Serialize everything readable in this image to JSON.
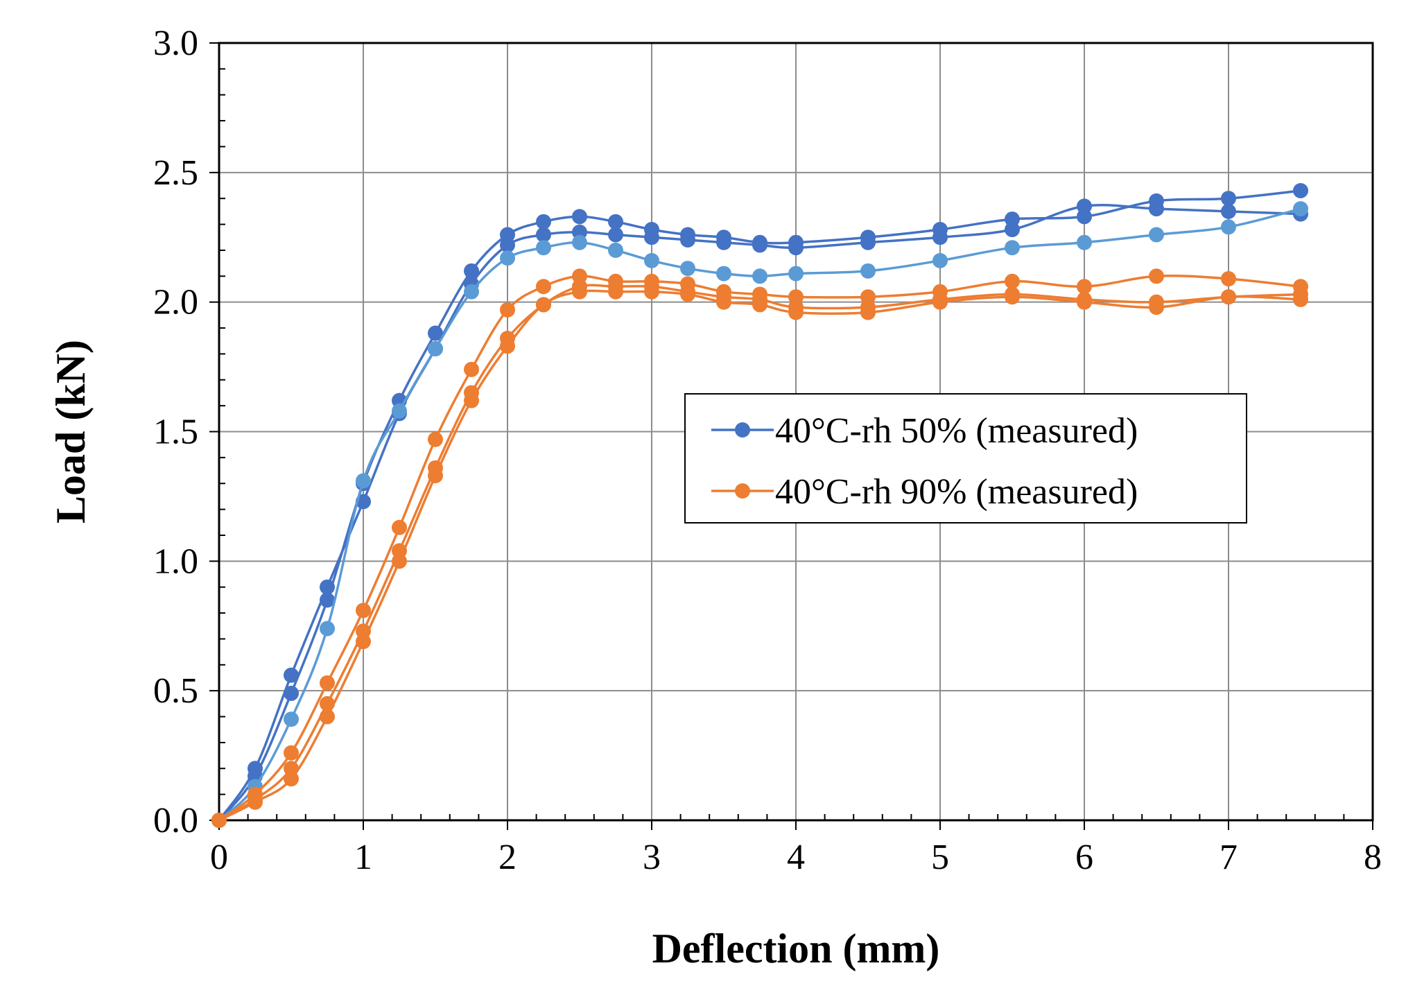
{
  "chart_data": {
    "type": "line",
    "title": "",
    "xlabel": "Deflection (mm)",
    "ylabel": "Load (kN)",
    "xlim": [
      0,
      8
    ],
    "ylim": [
      0,
      3
    ],
    "x_major_step": 1,
    "y_major_step": 0.5,
    "x_ticks": [
      "0",
      "1",
      "2",
      "3",
      "4",
      "5",
      "6",
      "7",
      "8"
    ],
    "y_ticks": [
      "0.0",
      "0.5",
      "1.0",
      "1.5",
      "2.0",
      "2.5",
      "3.0"
    ],
    "grid": true,
    "legend": {
      "position": "center-right",
      "entries": [
        {
          "label": "40°C-rh 50% (measured)",
          "color": "#4472C4"
        },
        {
          "label": "40°C-rh 90% (measured)",
          "color": "#ED7D31"
        }
      ]
    },
    "series": [
      {
        "legend_index": 0,
        "color": "#4472C4",
        "x": [
          0,
          0.25,
          0.5,
          0.75,
          1.0,
          1.25,
          1.5,
          1.75,
          2.0,
          2.25,
          2.5,
          2.75,
          3.0,
          3.25,
          3.5,
          3.75,
          4.0,
          4.5,
          5.0,
          5.5,
          6.0,
          6.5,
          7.0,
          7.5
        ],
        "y": [
          0,
          0.17,
          0.49,
          0.85,
          1.3,
          1.62,
          1.88,
          2.12,
          2.26,
          2.31,
          2.33,
          2.31,
          2.28,
          2.26,
          2.25,
          2.23,
          2.23,
          2.25,
          2.28,
          2.32,
          2.33,
          2.39,
          2.4,
          2.43
        ]
      },
      {
        "color": "#4472C4",
        "x": [
          0,
          0.25,
          0.5,
          0.75,
          1.0,
          1.25,
          1.5,
          1.75,
          2.0,
          2.25,
          2.5,
          2.75,
          3.0,
          3.25,
          3.5,
          3.75,
          4.0,
          4.5,
          5.0,
          5.5,
          6.0,
          6.5,
          7.0,
          7.5
        ],
        "y": [
          0,
          0.2,
          0.56,
          0.9,
          1.23,
          1.57,
          1.82,
          2.07,
          2.22,
          2.26,
          2.27,
          2.26,
          2.25,
          2.24,
          2.23,
          2.22,
          2.21,
          2.23,
          2.25,
          2.28,
          2.37,
          2.36,
          2.35,
          2.34
        ]
      },
      {
        "color": "#5B9BD5",
        "x": [
          0,
          0.25,
          0.5,
          0.75,
          1.0,
          1.25,
          1.5,
          1.75,
          2.0,
          2.25,
          2.5,
          2.75,
          3.0,
          3.25,
          3.5,
          3.75,
          4.0,
          4.5,
          5.0,
          5.5,
          6.0,
          6.5,
          7.0,
          7.5
        ],
        "y": [
          0,
          0.13,
          0.39,
          0.74,
          1.31,
          1.58,
          1.82,
          2.04,
          2.17,
          2.21,
          2.23,
          2.2,
          2.16,
          2.13,
          2.11,
          2.1,
          2.11,
          2.12,
          2.16,
          2.21,
          2.23,
          2.26,
          2.29,
          2.36
        ]
      },
      {
        "legend_index": 1,
        "color": "#ED7D31",
        "x": [
          0,
          0.25,
          0.5,
          0.75,
          1.0,
          1.25,
          1.5,
          1.75,
          2.0,
          2.25,
          2.5,
          2.75,
          3.0,
          3.25,
          3.5,
          3.75,
          4.0,
          4.5,
          5.0,
          5.5,
          6.0,
          6.5,
          7.0,
          7.5
        ],
        "y": [
          0,
          0.1,
          0.26,
          0.53,
          0.81,
          1.13,
          1.47,
          1.74,
          1.97,
          2.06,
          2.1,
          2.08,
          2.08,
          2.07,
          2.04,
          2.03,
          2.02,
          2.02,
          2.04,
          2.08,
          2.06,
          2.1,
          2.09,
          2.06
        ]
      },
      {
        "color": "#ED7D31",
        "x": [
          0,
          0.25,
          0.5,
          0.75,
          1.0,
          1.25,
          1.5,
          1.75,
          2.0,
          2.25,
          2.5,
          2.75,
          3.0,
          3.25,
          3.5,
          3.75,
          4.0,
          4.5,
          5.0,
          5.5,
          6.0,
          6.5,
          7.0,
          7.5
        ],
        "y": [
          0,
          0.08,
          0.2,
          0.45,
          0.73,
          1.04,
          1.36,
          1.65,
          1.86,
          1.99,
          2.06,
          2.06,
          2.06,
          2.04,
          2.02,
          2.01,
          1.98,
          1.98,
          2.01,
          2.03,
          2.01,
          2.0,
          2.02,
          2.03
        ]
      },
      {
        "color": "#ED7D31",
        "x": [
          0,
          0.25,
          0.5,
          0.75,
          1.0,
          1.25,
          1.5,
          1.75,
          2.0,
          2.25,
          2.5,
          2.75,
          3.0,
          3.25,
          3.5,
          3.75,
          4.0,
          4.5,
          5.0,
          5.5,
          6.0,
          6.5,
          7.0,
          7.5
        ],
        "y": [
          0,
          0.07,
          0.16,
          0.4,
          0.69,
          1.0,
          1.33,
          1.62,
          1.83,
          1.99,
          2.04,
          2.04,
          2.04,
          2.03,
          2.0,
          1.99,
          1.96,
          1.96,
          2.0,
          2.02,
          2.0,
          1.98,
          2.02,
          2.01
        ]
      }
    ]
  }
}
